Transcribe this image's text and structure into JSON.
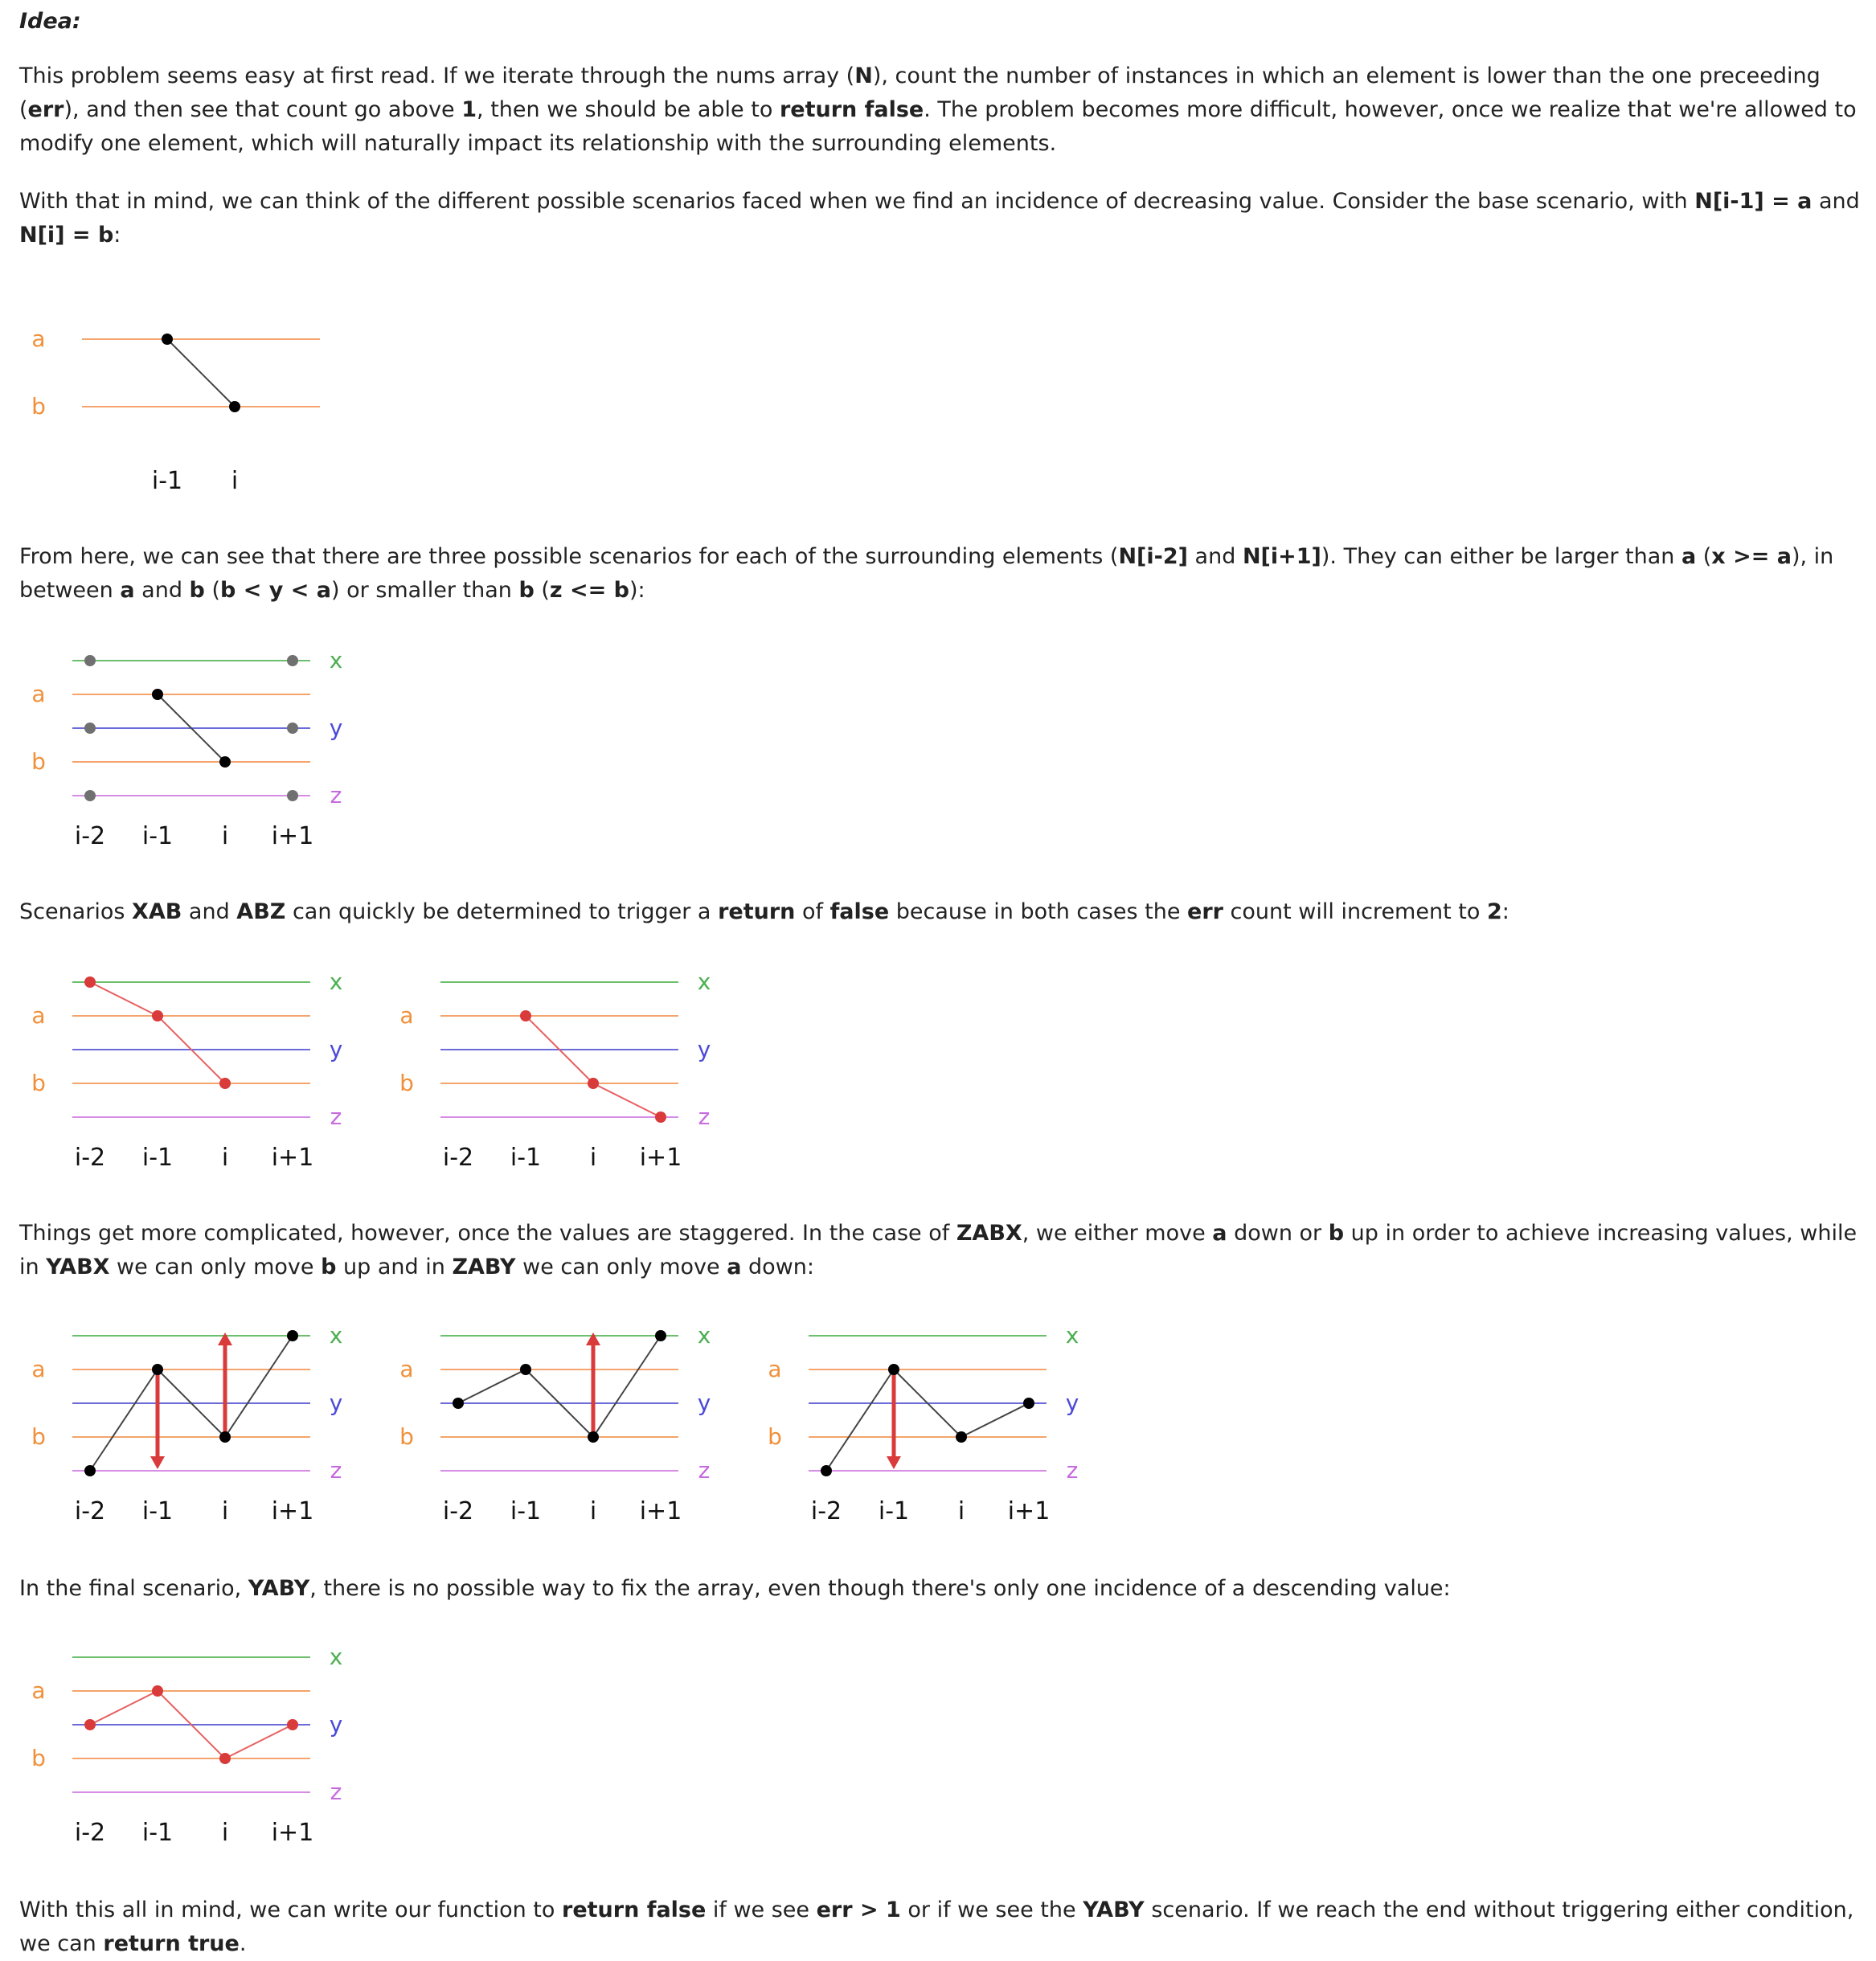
{
  "heading": "Idea:",
  "paragraphs": [
    [
      {
        "t": "This problem seems easy at first read. If we iterate through the nums array ("
      },
      {
        "t": "N",
        "b": true
      },
      {
        "t": "), count the number of instances in which an element is lower than the one preceeding ("
      },
      {
        "t": "err",
        "b": true
      },
      {
        "t": "), and then see that count go above "
      },
      {
        "t": "1",
        "b": true
      },
      {
        "t": ", then we should be able to "
      },
      {
        "t": "return false",
        "b": true
      },
      {
        "t": ". The problem becomes more difficult, however, once we realize that we're allowed to modify one element, which will naturally impact its relationship with the surrounding elements."
      }
    ],
    [
      {
        "t": "With that in mind, we can think of the different possible scenarios faced when we find an incidence of decreasing value. Consider the base scenario, with "
      },
      {
        "t": "N[i-1] = a",
        "b": true
      },
      {
        "t": " and "
      },
      {
        "t": "N[i] = b",
        "b": true
      },
      {
        "t": ":"
      }
    ],
    [
      {
        "t": "From here, we can see that there are three possible scenarios for each of the surrounding elements ("
      },
      {
        "t": "N[i-2]",
        "b": true
      },
      {
        "t": " and "
      },
      {
        "t": "N[i+1]",
        "b": true
      },
      {
        "t": "). They can either be larger than "
      },
      {
        "t": "a",
        "b": true
      },
      {
        "t": " ("
      },
      {
        "t": "x >= a",
        "b": true
      },
      {
        "t": "), in between "
      },
      {
        "t": "a",
        "b": true
      },
      {
        "t": " and "
      },
      {
        "t": "b",
        "b": true
      },
      {
        "t": " ("
      },
      {
        "t": "b < y < a",
        "b": true
      },
      {
        "t": ") or smaller than "
      },
      {
        "t": "b",
        "b": true
      },
      {
        "t": " ("
      },
      {
        "t": "z <= b",
        "b": true
      },
      {
        "t": "):"
      }
    ],
    [
      {
        "t": "Scenarios "
      },
      {
        "t": "XAB",
        "b": true
      },
      {
        "t": " and "
      },
      {
        "t": "ABZ",
        "b": true
      },
      {
        "t": " can quickly be determined to trigger a "
      },
      {
        "t": "return",
        "b": true
      },
      {
        "t": " of "
      },
      {
        "t": "false",
        "b": true
      },
      {
        "t": " because in both cases the "
      },
      {
        "t": "err",
        "b": true
      },
      {
        "t": " count will increment to "
      },
      {
        "t": "2",
        "b": true
      },
      {
        "t": ":"
      }
    ],
    [
      {
        "t": "Things get more complicated, however, once the values are staggered. In the case of "
      },
      {
        "t": "ZABX",
        "b": true
      },
      {
        "t": ", we either move "
      },
      {
        "t": "a",
        "b": true
      },
      {
        "t": " down or "
      },
      {
        "t": "b",
        "b": true
      },
      {
        "t": " up in order to achieve increasing values, while in "
      },
      {
        "t": "YABX",
        "b": true
      },
      {
        "t": " we can only move "
      },
      {
        "t": "b",
        "b": true
      },
      {
        "t": " up and in "
      },
      {
        "t": "ZABY",
        "b": true
      },
      {
        "t": " we can only move "
      },
      {
        "t": "a",
        "b": true
      },
      {
        "t": " down:"
      }
    ],
    [
      {
        "t": "In the final scenario, "
      },
      {
        "t": "YABY",
        "b": true
      },
      {
        "t": ", there is no possible way to fix the array, even though there's only one incidence of a descending value:"
      }
    ],
    [
      {
        "t": "With this all in mind, we can write our function to "
      },
      {
        "t": "return false",
        "b": true
      },
      {
        "t": " if we see "
      },
      {
        "t": "err > 1",
        "b": true
      },
      {
        "t": " or if we see the "
      },
      {
        "t": "YABY",
        "b": true
      },
      {
        "t": " scenario. If we reach the end without triggering either condition, we can "
      },
      {
        "t": "return true",
        "b": true
      },
      {
        "t": "."
      }
    ]
  ],
  "colors": {
    "a_line": "#f4a46c",
    "b_line": "#f4a46c",
    "x_line": "#6cbf6c",
    "y_line": "#6b6bdb",
    "z_line": "#d78ce6",
    "a_label": "#f0903a",
    "x_label": "#4caf50",
    "y_label": "#4a4ad8",
    "z_label": "#c86ae0",
    "node_black": "#000000",
    "node_gray": "#707070",
    "node_red": "#d93a3a",
    "arrow_red": "#d93a3a",
    "seg_black": "#444444",
    "seg_red": "#e86060"
  },
  "figures": [
    {
      "name": "base-scenario",
      "labels": {
        "a": "a",
        "b": "b",
        "x": "",
        "y": "",
        "z": "",
        "cols": [
          "i-1",
          "i"
        ]
      },
      "nodes": [
        [
          "i-1",
          "a",
          "node_black"
        ],
        [
          "i",
          "b",
          "node_black"
        ]
      ],
      "segments": [
        [
          [
            "i-1",
            "a"
          ],
          [
            "i",
            "b"
          ],
          "seg_black"
        ]
      ],
      "arrows": []
    },
    {
      "name": "three-possibilities",
      "labels": {
        "a": "a",
        "b": "b",
        "x": "x",
        "y": "y",
        "z": "z",
        "cols": [
          "i-2",
          "i-1",
          "i",
          "i+1"
        ]
      },
      "nodes": [
        [
          "i-1",
          "a",
          "node_black"
        ],
        [
          "i",
          "b",
          "node_black"
        ],
        [
          "i-2",
          "x",
          "node_gray"
        ],
        [
          "i-2",
          "y",
          "node_gray"
        ],
        [
          "i-2",
          "z",
          "node_gray"
        ],
        [
          "i+1",
          "x",
          "node_gray"
        ],
        [
          "i+1",
          "y",
          "node_gray"
        ],
        [
          "i+1",
          "z",
          "node_gray"
        ]
      ],
      "segments": [
        [
          [
            "i-1",
            "a"
          ],
          [
            "i",
            "b"
          ],
          "seg_black"
        ]
      ],
      "arrows": []
    },
    {
      "name": "scenario-xab",
      "labels": {
        "a": "a",
        "b": "b",
        "x": "x",
        "y": "y",
        "z": "z",
        "cols": [
          "i-2",
          "i-1",
          "i",
          "i+1"
        ]
      },
      "nodes": [
        [
          "i-2",
          "x",
          "node_red"
        ],
        [
          "i-1",
          "a",
          "node_red"
        ],
        [
          "i",
          "b",
          "node_red"
        ]
      ],
      "segments": [
        [
          [
            "i-2",
            "x"
          ],
          [
            "i-1",
            "a"
          ],
          "seg_red"
        ],
        [
          [
            "i-1",
            "a"
          ],
          [
            "i",
            "b"
          ],
          "seg_red"
        ]
      ],
      "arrows": []
    },
    {
      "name": "scenario-abz",
      "labels": {
        "a": "a",
        "b": "b",
        "x": "x",
        "y": "y",
        "z": "z",
        "cols": [
          "i-2",
          "i-1",
          "i",
          "i+1"
        ]
      },
      "nodes": [
        [
          "i-1",
          "a",
          "node_red"
        ],
        [
          "i",
          "b",
          "node_red"
        ],
        [
          "i+1",
          "z",
          "node_red"
        ]
      ],
      "segments": [
        [
          [
            "i-1",
            "a"
          ],
          [
            "i",
            "b"
          ],
          "seg_red"
        ],
        [
          [
            "i",
            "b"
          ],
          [
            "i+1",
            "z"
          ],
          "seg_red"
        ]
      ],
      "arrows": []
    },
    {
      "name": "scenario-zabx",
      "labels": {
        "a": "a",
        "b": "b",
        "x": "x",
        "y": "y",
        "z": "z",
        "cols": [
          "i-2",
          "i-1",
          "i",
          "i+1"
        ]
      },
      "nodes": [
        [
          "i-2",
          "z",
          "node_black"
        ],
        [
          "i-1",
          "a",
          "node_black"
        ],
        [
          "i",
          "b",
          "node_black"
        ],
        [
          "i+1",
          "x",
          "node_black"
        ]
      ],
      "segments": [
        [
          [
            "i-2",
            "z"
          ],
          [
            "i-1",
            "a"
          ],
          "seg_black"
        ],
        [
          [
            "i-1",
            "a"
          ],
          [
            "i",
            "b"
          ],
          "seg_black"
        ],
        [
          [
            "i",
            "b"
          ],
          [
            "i+1",
            "x"
          ],
          "seg_black"
        ]
      ],
      "arrows": [
        [
          "i-1",
          "down"
        ],
        [
          "i",
          "up"
        ]
      ]
    },
    {
      "name": "scenario-yabx",
      "labels": {
        "a": "a",
        "b": "b",
        "x": "x",
        "y": "y",
        "z": "z",
        "cols": [
          "i-2",
          "i-1",
          "i",
          "i+1"
        ]
      },
      "nodes": [
        [
          "i-2",
          "y",
          "node_black"
        ],
        [
          "i-1",
          "a",
          "node_black"
        ],
        [
          "i",
          "b",
          "node_black"
        ],
        [
          "i+1",
          "x",
          "node_black"
        ]
      ],
      "segments": [
        [
          [
            "i-2",
            "y"
          ],
          [
            "i-1",
            "a"
          ],
          "seg_black"
        ],
        [
          [
            "i-1",
            "a"
          ],
          [
            "i",
            "b"
          ],
          "seg_black"
        ],
        [
          [
            "i",
            "b"
          ],
          [
            "i+1",
            "x"
          ],
          "seg_black"
        ]
      ],
      "arrows": [
        [
          "i",
          "up"
        ]
      ]
    },
    {
      "name": "scenario-zaby",
      "labels": {
        "a": "a",
        "b": "b",
        "x": "x",
        "y": "y",
        "z": "z",
        "cols": [
          "i-2",
          "i-1",
          "i",
          "i+1"
        ]
      },
      "nodes": [
        [
          "i-2",
          "z",
          "node_black"
        ],
        [
          "i-1",
          "a",
          "node_black"
        ],
        [
          "i",
          "b",
          "node_black"
        ],
        [
          "i+1",
          "y",
          "node_black"
        ]
      ],
      "segments": [
        [
          [
            "i-2",
            "z"
          ],
          [
            "i-1",
            "a"
          ],
          "seg_black"
        ],
        [
          [
            "i-1",
            "a"
          ],
          [
            "i",
            "b"
          ],
          "seg_black"
        ],
        [
          [
            "i",
            "b"
          ],
          [
            "i+1",
            "y"
          ],
          "seg_black"
        ]
      ],
      "arrows": [
        [
          "i-1",
          "down"
        ]
      ]
    },
    {
      "name": "scenario-yaby",
      "labels": {
        "a": "a",
        "b": "b",
        "x": "x",
        "y": "y",
        "z": "z",
        "cols": [
          "i-2",
          "i-1",
          "i",
          "i+1"
        ]
      },
      "nodes": [
        [
          "i-2",
          "y",
          "node_red"
        ],
        [
          "i-1",
          "a",
          "node_red"
        ],
        [
          "i",
          "b",
          "node_red"
        ],
        [
          "i+1",
          "y",
          "node_red"
        ]
      ],
      "segments": [
        [
          [
            "i-2",
            "y"
          ],
          [
            "i-1",
            "a"
          ],
          "seg_red"
        ],
        [
          [
            "i-1",
            "a"
          ],
          [
            "i",
            "b"
          ],
          "seg_red"
        ],
        [
          [
            "i",
            "b"
          ],
          [
            "i+1",
            "y"
          ],
          "seg_red"
        ]
      ],
      "arrows": []
    }
  ]
}
